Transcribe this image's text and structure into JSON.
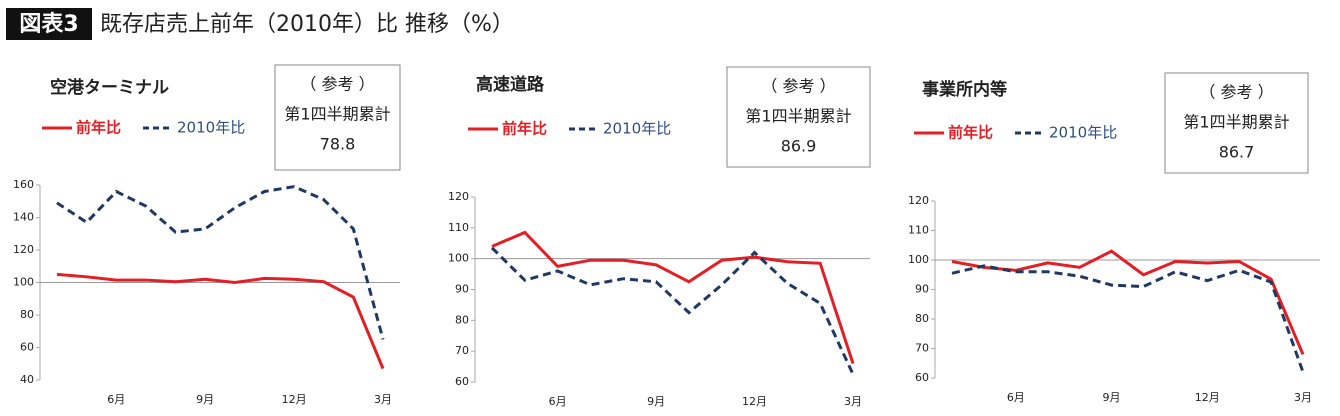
{
  "header": {
    "badge": "図表3",
    "title": "既存店売上前年（2010年）比 推移（%）"
  },
  "chart_data": [
    {
      "type": "line",
      "title": "空港ターミナル",
      "categories": [
        null,
        null,
        "6月",
        null,
        null,
        "9月",
        null,
        null,
        "12月",
        null,
        null,
        "3月"
      ],
      "series": [
        {
          "name": "前年比",
          "color": "#e31e24",
          "dash": false,
          "values": [
            105,
            103.5,
            101.5,
            101.5,
            100.5,
            102,
            100,
            102.5,
            102,
            100.5,
            91,
            47
          ]
        },
        {
          "name": "2010年比",
          "color": "#1f3864",
          "dash": true,
          "values": [
            149,
            137,
            156,
            147,
            131,
            133,
            146,
            156,
            159,
            151,
            133,
            65
          ]
        }
      ],
      "ylim": [
        40,
        160
      ],
      "yticks": [
        40,
        60,
        80,
        100,
        120,
        140,
        160
      ],
      "x_axis_at": 100,
      "note": {
        "heading": "（ 参考 ）",
        "label": "第1四半期累計",
        "value": 78.8
      }
    },
    {
      "type": "line",
      "title": "高速道路",
      "categories": [
        null,
        null,
        "6月",
        null,
        null,
        "9月",
        null,
        null,
        "12月",
        null,
        null,
        "3月"
      ],
      "series": [
        {
          "name": "前年比",
          "color": "#e31e24",
          "dash": false,
          "values": [
            104,
            108.5,
            97.5,
            99.5,
            99.5,
            98,
            92.5,
            99.5,
            100.5,
            99,
            98.5,
            66
          ]
        },
        {
          "name": "2010年比",
          "color": "#1f3864",
          "dash": true,
          "values": [
            103.5,
            93,
            96,
            91.5,
            93.5,
            92.5,
            82.5,
            91.5,
            102,
            92,
            85.5,
            62.5
          ]
        }
      ],
      "ylim": [
        60,
        120
      ],
      "yticks": [
        60,
        70,
        80,
        90,
        100,
        110,
        120
      ],
      "x_axis_at": 100,
      "note": {
        "heading": "（ 参考 ）",
        "label": "第1四半期累計",
        "value": 86.9
      }
    },
    {
      "type": "line",
      "title": "事業所内等",
      "categories": [
        null,
        null,
        "6月",
        null,
        null,
        "9月",
        null,
        null,
        "12月",
        null,
        null,
        "3月"
      ],
      "series": [
        {
          "name": "前年比",
          "color": "#e31e24",
          "dash": false,
          "values": [
            99.5,
            97.5,
            96.5,
            99,
            97.5,
            103,
            95,
            99.5,
            99,
            99.5,
            93.5,
            68
          ]
        },
        {
          "name": "2010年比",
          "color": "#1f3864",
          "dash": true,
          "values": [
            95.5,
            98,
            96,
            96,
            94.5,
            91.5,
            91,
            96,
            93,
            96.5,
            92.5,
            62
          ]
        }
      ],
      "ylim": [
        60,
        120
      ],
      "yticks": [
        60,
        70,
        80,
        90,
        100,
        110,
        120
      ],
      "x_axis_at": 100,
      "note": {
        "heading": "（ 参考 ）",
        "label": "第1四半期累計",
        "value": 86.7
      }
    }
  ]
}
